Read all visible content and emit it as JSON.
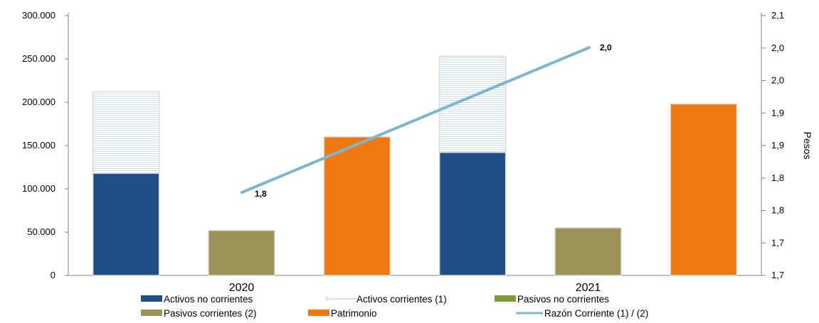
{
  "chart_data": {
    "type": "bar",
    "categories": [
      "2020",
      "2021"
    ],
    "series": [
      {
        "name": "Activos no corrientes",
        "stack": "A",
        "color": "#1f4e85",
        "values": [
          118000,
          142000
        ]
      },
      {
        "name": "Activos corrientes (1)",
        "stack": "A",
        "color": "#e4ecf7",
        "values": [
          94000,
          111000
        ]
      },
      {
        "name": "Pasivos no corrientes",
        "stack": "B",
        "color": "#7e9b3a",
        "values": [
          0,
          0
        ]
      },
      {
        "name": "Pasivos corrientes (2)",
        "stack": "B",
        "color": "#9c9256",
        "values": [
          52000,
          55000
        ]
      },
      {
        "name": "Patrimonio",
        "stack": "C",
        "color": "#f07812",
        "values": [
          160000,
          198000
        ]
      }
    ],
    "line": {
      "name": "Razón Corriente (1) / (2)",
      "color": "#7eb7cc",
      "values": [
        1.8,
        2.0
      ],
      "labels": [
        "1,8",
        "2,0"
      ]
    },
    "y_left": {
      "min": 0,
      "max": 300000,
      "ticks": [
        "0",
        "50.000",
        "100.000",
        "150.000",
        "200.000",
        "250.000",
        "300.000"
      ]
    },
    "y_right": {
      "label": "Pesos",
      "ticks": [
        "1,7",
        "1,7",
        "1,8",
        "1,8",
        "1,9",
        "1,9",
        "2,0",
        "2,0",
        "2,1"
      ]
    },
    "legend": {
      "position": "bottom",
      "row1": [
        "Activos no corrientes",
        "Activos corrientes (1)",
        "Pasivos no corrientes"
      ],
      "row2": [
        "Pasivos corrientes (2)",
        "Patrimonio",
        "Razón Corriente (1) / (2)"
      ]
    }
  }
}
